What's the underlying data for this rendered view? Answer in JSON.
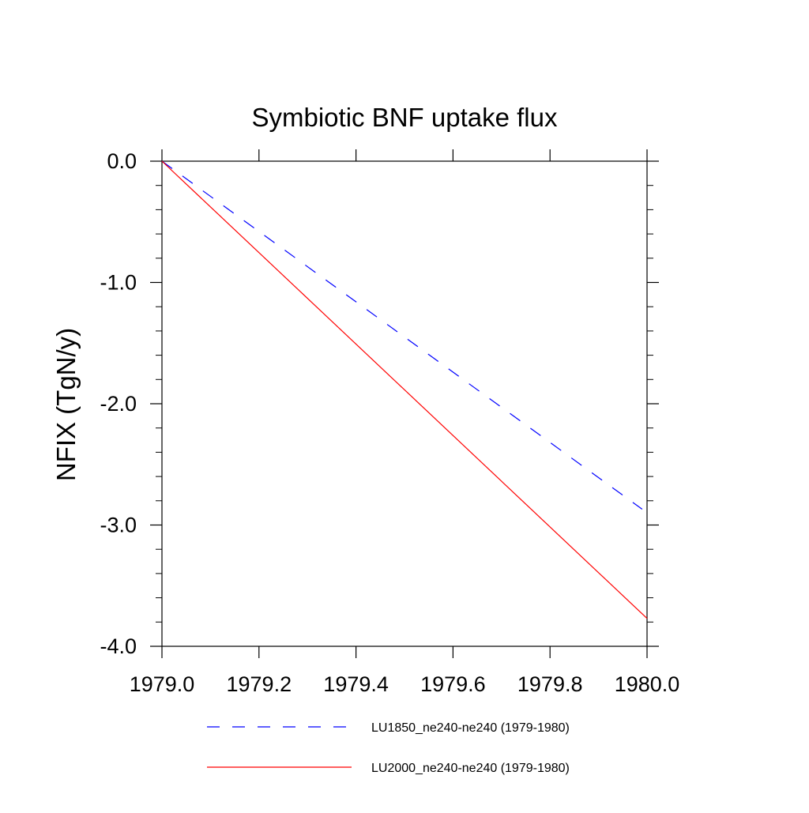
{
  "chart_data": {
    "type": "line",
    "title": "Symbiotic BNF uptake flux",
    "ylabel": "NFIX  (TgN/y)",
    "xlabel": "",
    "xlim": [
      1979.0,
      1980.0
    ],
    "ylim": [
      -4.0,
      0.0
    ],
    "x_ticks": [
      1979.0,
      1979.2,
      1979.4,
      1979.6,
      1979.8,
      1980.0
    ],
    "x_tick_labels": [
      "1979.0",
      "1979.2",
      "1979.4",
      "1979.6",
      "1979.8",
      "1980.0"
    ],
    "y_ticks": [
      0.0,
      -1.0,
      -2.0,
      -3.0,
      -4.0
    ],
    "y_tick_labels": [
      "0.0",
      "-1.0",
      "-2.0",
      "-3.0",
      "-4.0"
    ],
    "grid": false,
    "legend_position": "bottom",
    "series": [
      {
        "name": "LU1850_ne240-ne240 (1979-1980)",
        "color": "#0000ff",
        "dash": "dashed",
        "x": [
          1979.0,
          1979.99
        ],
        "y": [
          0.0,
          -2.87
        ]
      },
      {
        "name": "LU2000_ne240-ne240 (1979-1980)",
        "color": "#ff0000",
        "dash": "solid",
        "x": [
          1979.0,
          1980.0
        ],
        "y": [
          0.0,
          -3.77
        ]
      }
    ]
  }
}
